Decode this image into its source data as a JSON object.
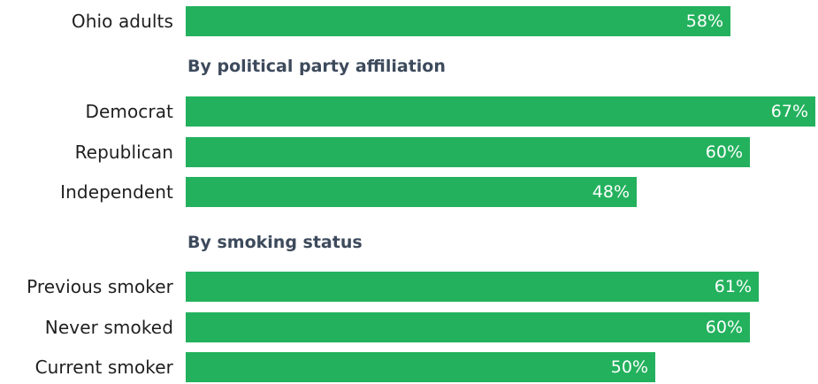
{
  "colors": {
    "bar": "#23b15d",
    "heading": "#3d4a5c",
    "label": "#1f1f1f",
    "value_text": "#ffffff"
  },
  "chart_data": {
    "type": "bar",
    "orientation": "horizontal",
    "unit": "%",
    "xlim": [
      0,
      67
    ],
    "items": [
      {
        "category": "Ohio adults",
        "value": 58,
        "label": "58%",
        "group": ""
      },
      {
        "category": "Democrat",
        "value": 67,
        "label": "67%",
        "group": "By political party affiliation"
      },
      {
        "category": "Republican",
        "value": 60,
        "label": "60%",
        "group": "By political party affiliation"
      },
      {
        "category": "Independent",
        "value": 48,
        "label": "48%",
        "group": "By political party affiliation"
      },
      {
        "category": "Previous smoker",
        "value": 61,
        "label": "61%",
        "group": "By smoking status"
      },
      {
        "category": "Never smoked",
        "value": 60,
        "label": "60%",
        "group": "By smoking status"
      },
      {
        "category": "Current smoker",
        "value": 50,
        "label": "50%",
        "group": "By smoking status"
      }
    ],
    "groups": [
      "By political party affiliation",
      "By smoking status"
    ]
  }
}
